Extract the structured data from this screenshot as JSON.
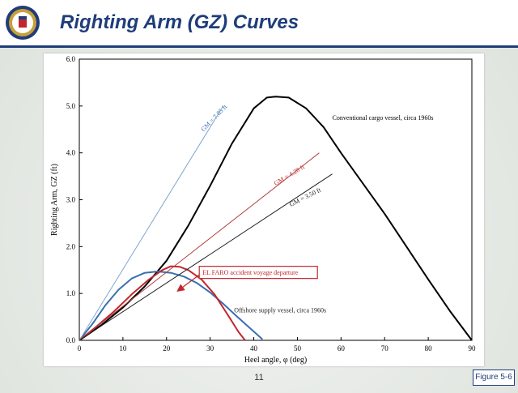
{
  "slide": {
    "title": "Righting Arm (GZ) Curves",
    "page_number": "11",
    "figure_label": "Figure 5-6",
    "title_color": "#1f3d7a"
  },
  "chart_data": {
    "type": "line",
    "xlabel": "Heel angle, φ (deg)",
    "ylabel": "Righting Arm, GZ (ft)",
    "xlim": [
      0,
      90
    ],
    "ylim": [
      0,
      6
    ],
    "xticks": [
      "0",
      "10",
      "20",
      "30",
      "40",
      "50",
      "60",
      "70",
      "80",
      "90"
    ],
    "yticks": [
      "0.0",
      "1.0",
      "2.0",
      "3.0",
      "4.0",
      "5.0",
      "6.0"
    ],
    "grid": false,
    "series": [
      {
        "name": "Conventional cargo vessel, circa 1960s",
        "color": "#000000",
        "points": [
          [
            0,
            0
          ],
          [
            5,
            0.32
          ],
          [
            10,
            0.7
          ],
          [
            15,
            1.15
          ],
          [
            20,
            1.7
          ],
          [
            25,
            2.45
          ],
          [
            30,
            3.3
          ],
          [
            35,
            4.2
          ],
          [
            40,
            4.95
          ],
          [
            43,
            5.18
          ],
          [
            45,
            5.2
          ],
          [
            48,
            5.18
          ],
          [
            52,
            4.95
          ],
          [
            56,
            4.55
          ],
          [
            60,
            4.0
          ],
          [
            65,
            3.35
          ],
          [
            70,
            2.7
          ],
          [
            75,
            2.0
          ],
          [
            80,
            1.3
          ],
          [
            85,
            0.62
          ],
          [
            90,
            0
          ]
        ]
      },
      {
        "name": "Offshore supply vessel, circa 1960s",
        "color": "#3b6fb0",
        "points": [
          [
            0,
            0
          ],
          [
            3,
            0.35
          ],
          [
            6,
            0.75
          ],
          [
            9,
            1.08
          ],
          [
            12,
            1.32
          ],
          [
            15,
            1.44
          ],
          [
            18,
            1.47
          ],
          [
            21,
            1.44
          ],
          [
            24,
            1.36
          ],
          [
            27,
            1.22
          ],
          [
            30,
            1.02
          ],
          [
            33,
            0.78
          ],
          [
            36,
            0.52
          ],
          [
            39,
            0.27
          ],
          [
            42,
            0.02
          ]
        ]
      },
      {
        "name": "EL FARO",
        "color": "#c0282d",
        "points": [
          [
            0,
            0
          ],
          [
            4,
            0.3
          ],
          [
            8,
            0.62
          ],
          [
            12,
            0.98
          ],
          [
            16,
            1.3
          ],
          [
            19,
            1.5
          ],
          [
            21,
            1.58
          ],
          [
            23,
            1.57
          ],
          [
            25,
            1.5
          ],
          [
            28,
            1.3
          ],
          [
            31,
            0.98
          ],
          [
            34,
            0.55
          ],
          [
            36.5,
            0.18
          ],
          [
            38,
            0
          ]
        ]
      },
      {
        "name": "GM = 7.85 ft",
        "color": "#7ea6cf",
        "points": [
          [
            0,
            0
          ],
          [
            33,
            5.0
          ]
        ]
      },
      {
        "name": "GM = 4.28 ft",
        "color": "#b04040",
        "points": [
          [
            0,
            0
          ],
          [
            55,
            4.0
          ]
        ]
      },
      {
        "name": "GM = 3.50 ft",
        "color": "#222222",
        "points": [
          [
            0,
            0
          ],
          [
            58,
            3.55
          ]
        ]
      }
    ],
    "annotations": [
      {
        "text": "Conventional cargo vessel, circa 1960s",
        "x": 58,
        "y": 4.7,
        "rotate": 0,
        "color": "#000000"
      },
      {
        "text": "Offshore supply vessel, circa 1960s",
        "x": 35.5,
        "y": 0.6,
        "rotate": 0,
        "color": "#222222"
      },
      {
        "text": "GM = 7.85 ft",
        "x": 28.5,
        "y": 4.45,
        "rotate": -46,
        "color": "#3b6fb0"
      },
      {
        "text": "GM = 4.28 ft",
        "x": 45,
        "y": 3.3,
        "rotate": -31,
        "color": "#c0282d"
      },
      {
        "text": "GM = 3.50 ft",
        "x": 48.5,
        "y": 2.85,
        "rotate": -27,
        "color": "#222222"
      }
    ],
    "callout": {
      "text": "EL FARO accident voyage departure",
      "x": 27.5,
      "y": 1.45,
      "arrow_to": [
        22.5,
        1.05
      ],
      "color": "#c0282d"
    }
  }
}
